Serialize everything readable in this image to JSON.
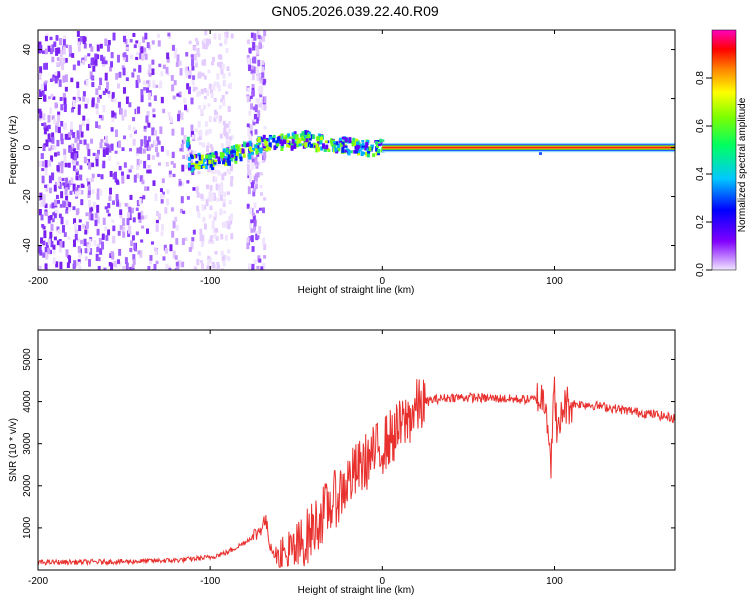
{
  "title": "GN05.2026.039.22.40.R09",
  "chart_data": [
    {
      "type": "heatmap",
      "xlabel": "Height of straight line (km)",
      "ylabel": "Frequency (Hz)",
      "xlim": [
        -200,
        170
      ],
      "ylim": [
        -50,
        48
      ],
      "x_ticks": [
        -200,
        -100,
        0,
        100
      ],
      "x_tick_labels": [
        "-200",
        "-100",
        "0",
        "100"
      ],
      "y_ticks": [
        -40,
        -20,
        0,
        20,
        40
      ],
      "y_tick_labels": [
        "-40",
        "-20",
        "0",
        "20",
        "40"
      ],
      "colorbar": {
        "label": "Normalized spectral amplitude",
        "range": [
          0,
          1
        ],
        "ticks": [
          0,
          0.2,
          0.4,
          0.6,
          0.8
        ],
        "tick_labels": [
          "0.0",
          "0.2",
          "0.4",
          "0.6",
          "0.8"
        ],
        "colors": [
          "#f0e0ff",
          "#8000ff",
          "#0000ff",
          "#00c8ff",
          "#00ff60",
          "#80ff00",
          "#ffff00",
          "#ff8000",
          "#ff0000",
          "#ff00c0"
        ]
      },
      "ridge": [
        {
          "x": -113,
          "y": -7
        },
        {
          "x": -100,
          "y": -6
        },
        {
          "x": -85,
          "y": -3
        },
        {
          "x": -70,
          "y": 1
        },
        {
          "x": -55,
          "y": 2
        },
        {
          "x": -45,
          "y": 3
        },
        {
          "x": -35,
          "y": 1
        },
        {
          "x": -20,
          "y": 0
        },
        {
          "x": -5,
          "y": -1
        },
        {
          "x": 0,
          "y": 0
        },
        {
          "x": 170,
          "y": 0
        }
      ]
    },
    {
      "type": "line",
      "xlabel": "Height of straight line (km)",
      "ylabel": "SNR (10 * v/v)",
      "xlim": [
        -200,
        170
      ],
      "ylim": [
        0,
        5700
      ],
      "x_ticks": [
        -200,
        -100,
        0,
        100
      ],
      "x_tick_labels": [
        "-200",
        "-100",
        "0",
        "100"
      ],
      "y_ticks": [
        1000,
        2000,
        3000,
        4000,
        5000
      ],
      "y_tick_labels": [
        "1000",
        "2000",
        "3000",
        "4000",
        "5000"
      ],
      "color": "#e8312e",
      "series": [
        {
          "name": "SNR",
          "x": [
            -200,
            -150,
            -120,
            -100,
            -90,
            -80,
            -72,
            -68,
            -65,
            -60,
            -55,
            -50,
            -45,
            -40,
            -35,
            -30,
            -25,
            -20,
            -15,
            -10,
            -5,
            0,
            5,
            10,
            15,
            20,
            25,
            30,
            40,
            50,
            60,
            70,
            80,
            90,
            95,
            98,
            100,
            102,
            105,
            110,
            120,
            130,
            140,
            150,
            160,
            170
          ],
          "y": [
            180,
            200,
            230,
            300,
            420,
            650,
            900,
            1200,
            600,
            250,
            300,
            450,
            700,
            1000,
            1300,
            1550,
            1800,
            2100,
            2350,
            2550,
            2750,
            2950,
            3150,
            3350,
            3600,
            3850,
            3980,
            4050,
            4100,
            4100,
            4080,
            4070,
            4050,
            4050,
            4100,
            2600,
            4300,
            3100,
            3900,
            3950,
            3930,
            3870,
            3800,
            3740,
            3680,
            3600
          ]
        }
      ]
    }
  ]
}
